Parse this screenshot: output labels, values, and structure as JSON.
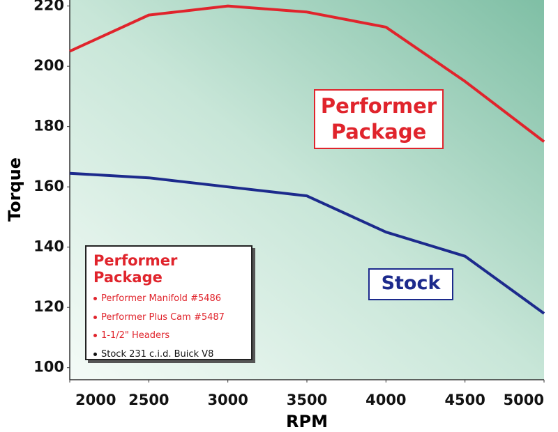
{
  "chart_data": {
    "type": "line",
    "x_label": "RPM",
    "y_label": "Torque",
    "x": [
      2000,
      2500,
      3000,
      3500,
      4000,
      4500,
      5000
    ],
    "series": [
      {
        "name": "Performer Package",
        "color": "#e0242c",
        "values": [
          205,
          217,
          220,
          218,
          213,
          195,
          175
        ]
      },
      {
        "name": "Stock",
        "color": "#1c2a8c",
        "values": [
          164.5,
          163,
          160,
          157,
          145,
          137,
          118
        ]
      }
    ],
    "xlim": [
      2000,
      5000
    ],
    "xticks": [
      2000,
      2500,
      3000,
      3500,
      4000,
      4500,
      5000
    ],
    "ylim": [
      96,
      222
    ],
    "yticks": [
      100,
      120,
      140,
      160,
      180,
      200,
      220
    ],
    "grid": false,
    "legend_box": {
      "title": "Performer Package",
      "items": [
        {
          "text": "Performer Manifold #5486",
          "color": "#e0242c"
        },
        {
          "text": "Performer Plus Cam #5487",
          "color": "#e0242c"
        },
        {
          "text": "1-1/2\" Headers",
          "color": "#e0242c"
        },
        {
          "text": "Stock 231 c.i.d. Buick V8",
          "color": "#111111"
        }
      ]
    }
  }
}
